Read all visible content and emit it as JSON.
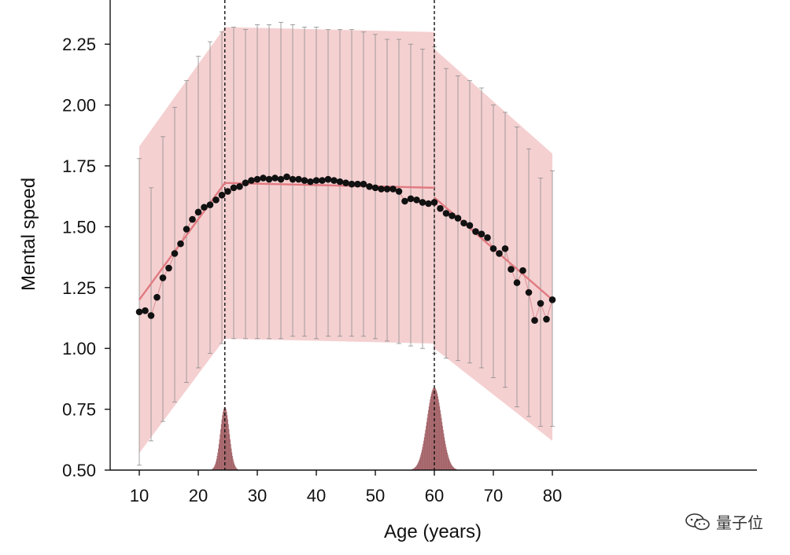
{
  "chart_data": {
    "type": "line",
    "xlabel": "Age (years)",
    "ylabel": "Mental speed",
    "xlim": [
      8,
      84
    ],
    "ylim": [
      0.5,
      2.35
    ],
    "x_ticks": [
      10,
      20,
      30,
      40,
      50,
      60,
      70,
      80
    ],
    "x_tick_labels": [
      "10",
      "20",
      "30",
      "40",
      "50",
      "60",
      "70",
      "80"
    ],
    "y_ticks": [
      0.5,
      0.75,
      1.0,
      1.25,
      1.5,
      1.75,
      2.0,
      2.25
    ],
    "y_tick_labels": [
      "0.50",
      "0.75",
      "1.00",
      "1.25",
      "1.50",
      "1.75",
      "2.00",
      "2.25"
    ],
    "breakpoints": [
      24.5,
      60
    ],
    "colors": {
      "band": "#f2c4c6",
      "fit_line": "#e07a80",
      "points": "#111111",
      "connector": "#d98a90",
      "density": "#9e5a5f",
      "errorbar": "#8c8c8c"
    },
    "series": [
      {
        "points": [
          [
            10,
            1.15
          ],
          [
            11,
            1.155
          ],
          [
            12,
            1.135
          ],
          [
            13,
            1.21
          ],
          [
            14,
            1.29
          ],
          [
            15,
            1.33
          ],
          [
            16,
            1.39
          ],
          [
            17,
            1.43
          ],
          [
            18,
            1.49
          ],
          [
            19,
            1.53
          ],
          [
            20,
            1.56
          ],
          [
            21,
            1.58
          ],
          [
            22,
            1.59
          ],
          [
            23,
            1.61
          ],
          [
            24,
            1.63
          ],
          [
            25,
            1.645
          ],
          [
            26,
            1.66
          ],
          [
            27,
            1.665
          ],
          [
            28,
            1.68
          ],
          [
            29,
            1.69
          ],
          [
            30,
            1.695
          ],
          [
            31,
            1.7
          ],
          [
            32,
            1.695
          ],
          [
            33,
            1.7
          ],
          [
            34,
            1.695
          ],
          [
            35,
            1.705
          ],
          [
            36,
            1.695
          ],
          [
            37,
            1.695
          ],
          [
            38,
            1.69
          ],
          [
            39,
            1.685
          ],
          [
            40,
            1.69
          ],
          [
            41,
            1.69
          ],
          [
            42,
            1.695
          ],
          [
            43,
            1.69
          ],
          [
            44,
            1.685
          ],
          [
            45,
            1.68
          ],
          [
            46,
            1.675
          ],
          [
            47,
            1.675
          ],
          [
            48,
            1.675
          ],
          [
            49,
            1.665
          ],
          [
            50,
            1.66
          ],
          [
            51,
            1.655
          ],
          [
            52,
            1.655
          ],
          [
            53,
            1.655
          ],
          [
            54,
            1.645
          ],
          [
            55,
            1.605
          ],
          [
            56,
            1.615
          ],
          [
            57,
            1.61
          ],
          [
            58,
            1.6
          ],
          [
            59,
            1.595
          ],
          [
            60,
            1.6
          ],
          [
            61,
            1.575
          ],
          [
            62,
            1.555
          ],
          [
            63,
            1.545
          ],
          [
            64,
            1.535
          ],
          [
            65,
            1.515
          ],
          [
            66,
            1.505
          ],
          [
            67,
            1.48
          ],
          [
            68,
            1.47
          ],
          [
            69,
            1.455
          ],
          [
            70,
            1.41
          ],
          [
            71,
            1.39
          ],
          [
            72,
            1.41
          ],
          [
            73,
            1.325
          ],
          [
            74,
            1.27
          ],
          [
            75,
            1.32
          ],
          [
            76,
            1.23
          ],
          [
            77,
            1.115
          ],
          [
            78,
            1.185
          ],
          [
            79,
            1.12
          ],
          [
            80,
            1.2
          ]
        ]
      },
      {
        "type": "piecewise-fit",
        "points": [
          [
            10,
            1.2
          ],
          [
            24.5,
            1.68
          ],
          [
            60,
            1.66
          ],
          [
            60,
            1.62
          ],
          [
            80,
            1.2
          ]
        ]
      }
    ],
    "confidence_band": {
      "upper": [
        [
          10,
          1.83
        ],
        [
          24.5,
          2.32
        ],
        [
          60,
          2.3
        ],
        [
          60,
          2.23
        ],
        [
          80,
          1.8
        ]
      ],
      "lower": [
        [
          10,
          0.57
        ],
        [
          24.5,
          1.04
        ],
        [
          60,
          1.02
        ],
        [
          60,
          1.0
        ],
        [
          80,
          0.62
        ]
      ]
    },
    "error_bars": [
      [
        10,
        0.52,
        1.78
      ],
      [
        12,
        0.62,
        1.66
      ],
      [
        14,
        0.7,
        1.87
      ],
      [
        16,
        0.78,
        1.99
      ],
      [
        18,
        0.86,
        2.1
      ],
      [
        20,
        0.92,
        2.2
      ],
      [
        22,
        0.98,
        2.26
      ],
      [
        24,
        1.02,
        2.3
      ],
      [
        26,
        1.04,
        2.32
      ],
      [
        28,
        1.04,
        2.31
      ],
      [
        30,
        1.04,
        2.33
      ],
      [
        32,
        1.04,
        2.33
      ],
      [
        34,
        1.04,
        2.34
      ],
      [
        36,
        1.05,
        2.33
      ],
      [
        38,
        1.05,
        2.32
      ],
      [
        40,
        1.04,
        2.32
      ],
      [
        42,
        1.05,
        2.31
      ],
      [
        44,
        1.05,
        2.31
      ],
      [
        46,
        1.05,
        2.31
      ],
      [
        48,
        1.05,
        2.3
      ],
      [
        50,
        1.04,
        2.29
      ],
      [
        52,
        1.03,
        2.27
      ],
      [
        54,
        1.02,
        2.27
      ],
      [
        56,
        1.01,
        2.25
      ],
      [
        58,
        1.0,
        2.23
      ],
      [
        60,
        0.98,
        2.24
      ],
      [
        62,
        0.96,
        2.15
      ],
      [
        64,
        0.95,
        2.12
      ],
      [
        66,
        0.94,
        2.1
      ],
      [
        68,
        0.92,
        2.07
      ],
      [
        70,
        0.88,
        2.0
      ],
      [
        72,
        0.84,
        1.97
      ],
      [
        74,
        0.76,
        1.91
      ],
      [
        76,
        0.72,
        1.82
      ],
      [
        78,
        0.68,
        1.7
      ],
      [
        80,
        0.68,
        1.73
      ]
    ],
    "density_peaks": [
      {
        "center": 24.5,
        "sigma": 0.75,
        "height": 0.26
      },
      {
        "center": 60,
        "sigma": 1.25,
        "height": 0.34
      }
    ]
  },
  "watermark": {
    "text": "量子位",
    "icon": "wechat-icon"
  }
}
